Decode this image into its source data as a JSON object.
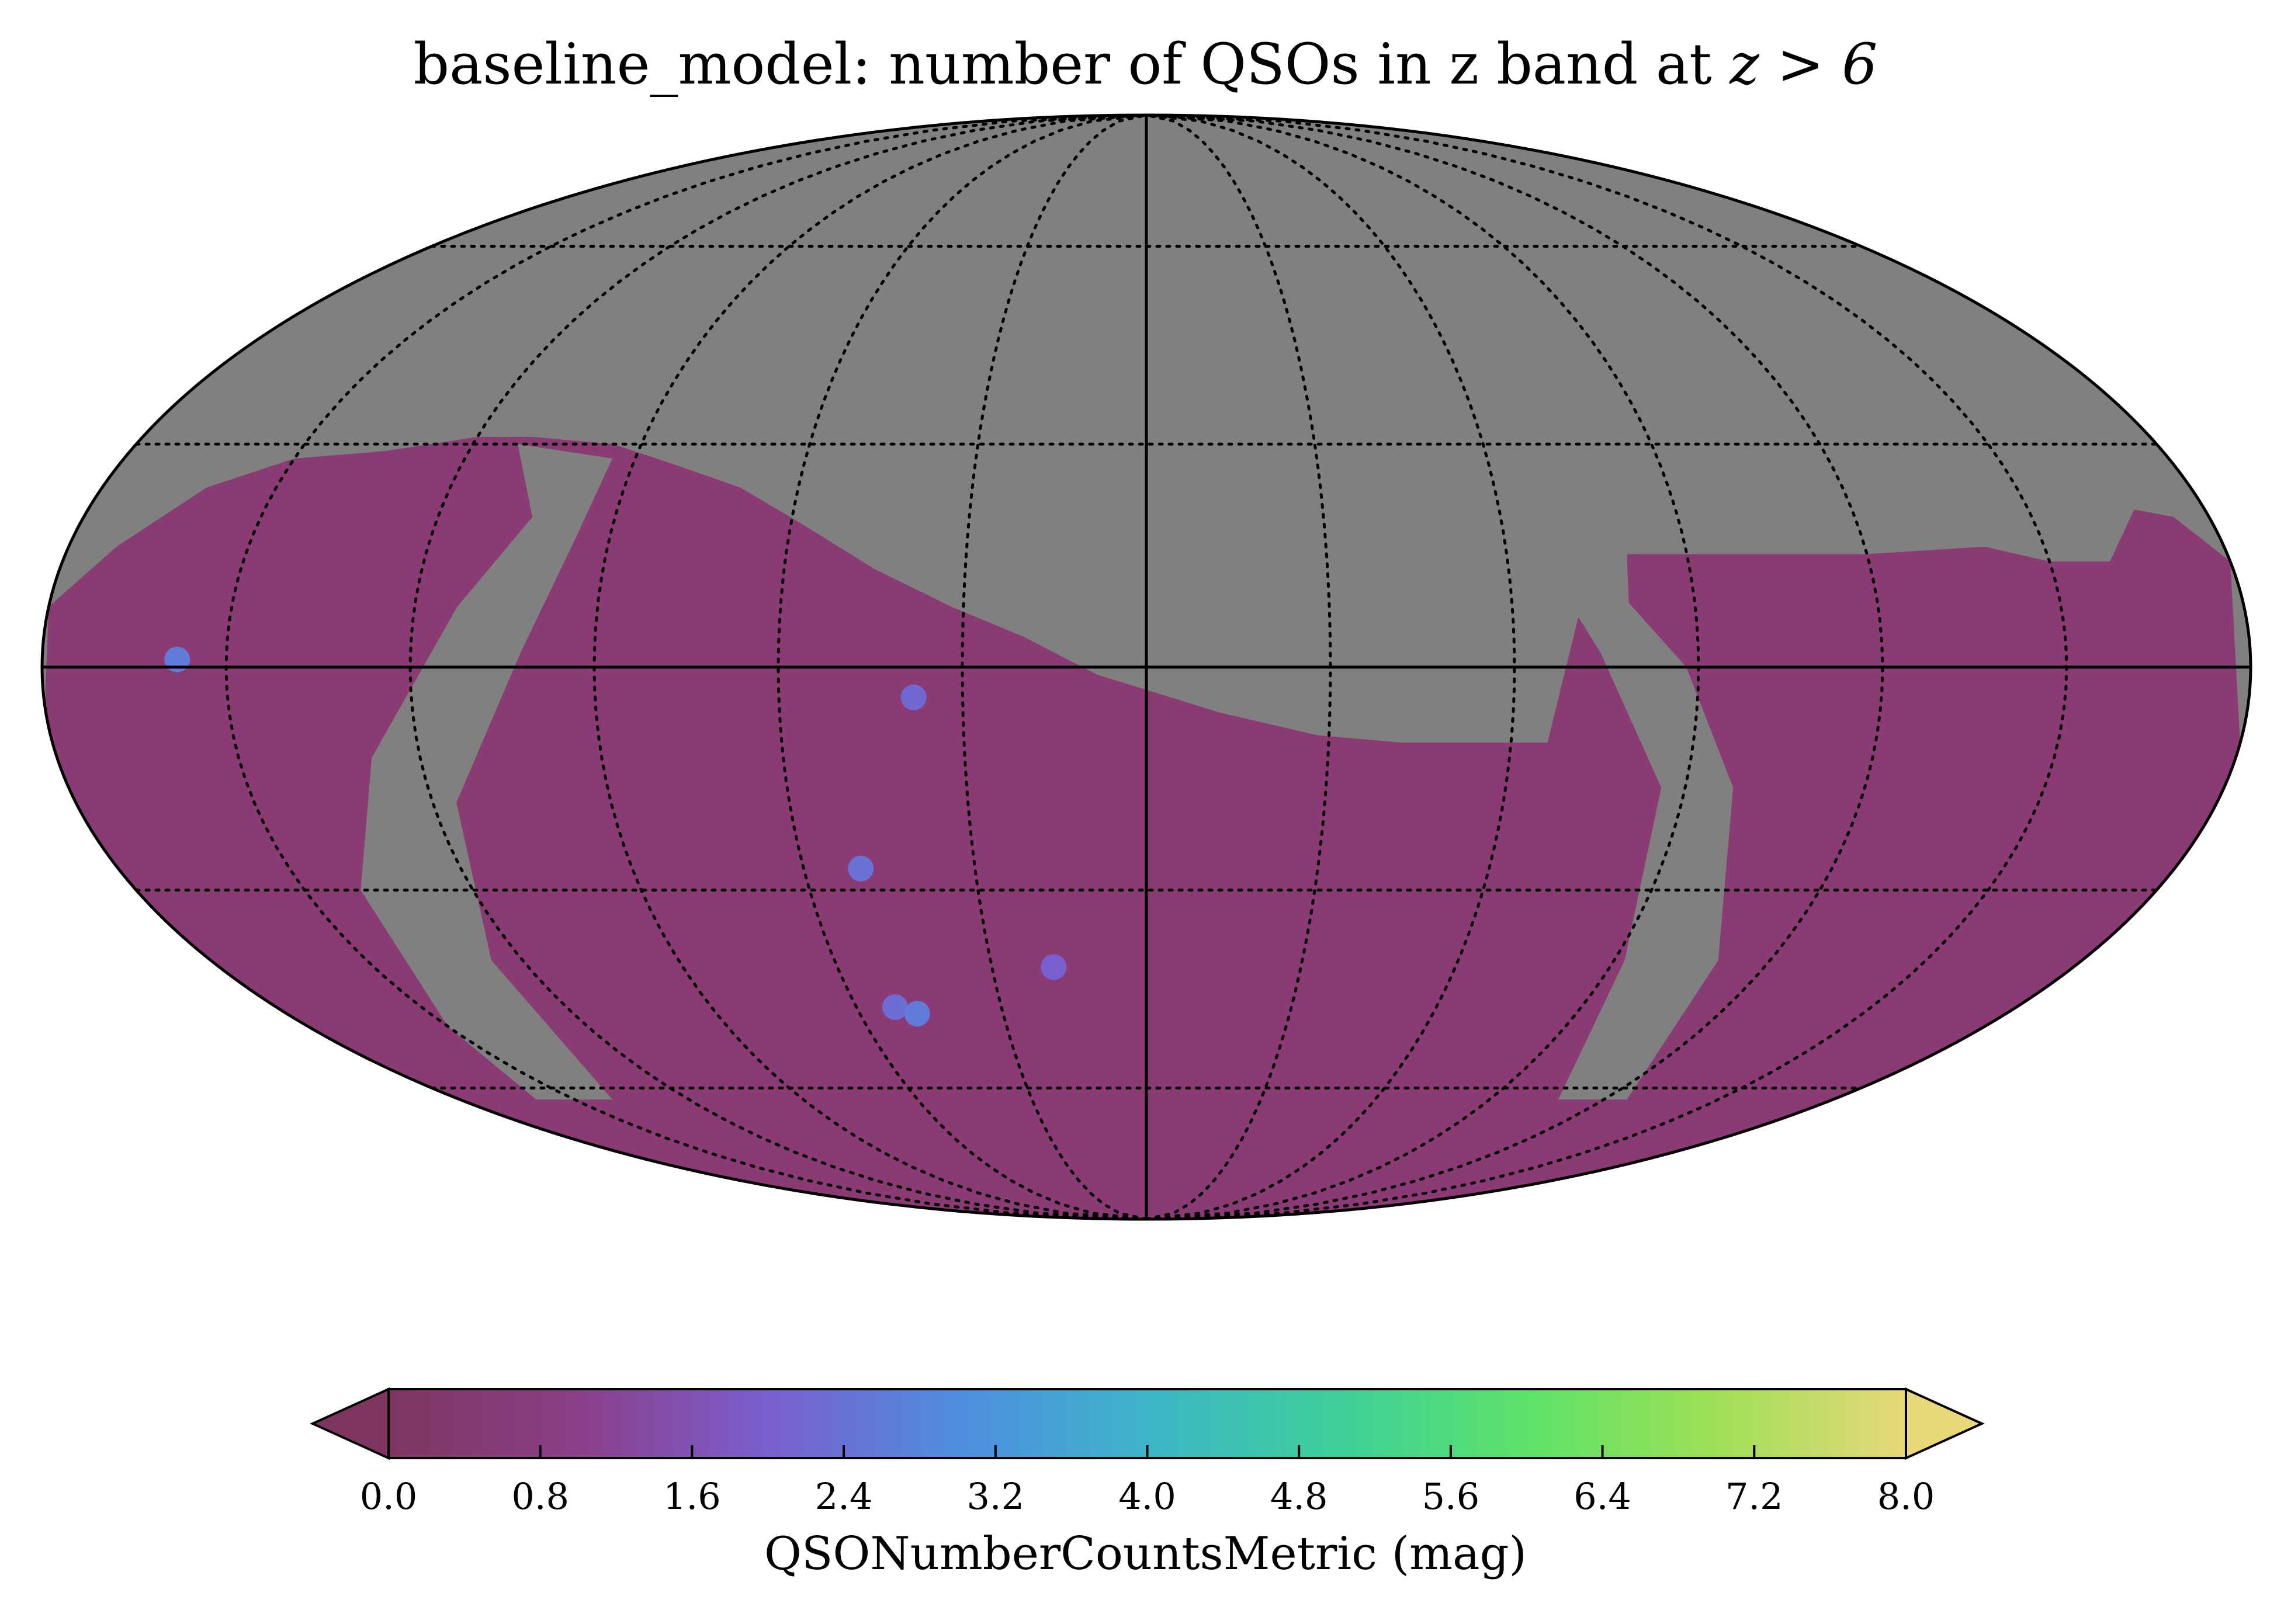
{
  "chart_data": {
    "type": "heatmap",
    "projection": "mollweide",
    "title_prefix": "baseline_model: number of QSOs in z band at ",
    "title_math": "z > 6",
    "colorbar": {
      "label": "QSONumberCountsMetric (mag)",
      "vmin": 0.0,
      "vmax": 8.0,
      "ticks": [
        "0.0",
        "0.8",
        "1.6",
        "2.4",
        "3.2",
        "4.0",
        "4.8",
        "5.6",
        "6.4",
        "7.2",
        "8.0"
      ],
      "extend": "both",
      "colormap_stops": [
        "#7e3660",
        "#8b3f88",
        "#7a5fd0",
        "#4f8de0",
        "#3db5c8",
        "#3ecf9a",
        "#5de26a",
        "#9fe055",
        "#e7d87a"
      ]
    },
    "grid": true,
    "masked_color": "#808080",
    "background_value_color": "#8a3b73",
    "hotspots": [
      {
        "lon": -158,
        "lat": 1,
        "value": 2.6
      },
      {
        "lon": -38,
        "lat": -4,
        "value": 2.2
      },
      {
        "lon": -50,
        "lat": -27,
        "value": 2.4
      },
      {
        "lon": -18,
        "lat": -41,
        "value": 2.0
      },
      {
        "lon": -52,
        "lat": -47,
        "value": 2.3
      },
      {
        "lon": -48,
        "lat": -48,
        "value": 2.6
      }
    ]
  }
}
